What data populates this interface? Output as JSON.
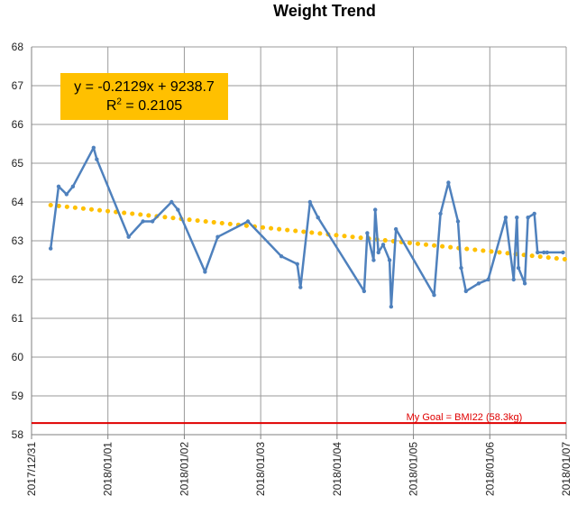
{
  "chart_data": {
    "type": "line",
    "title": "Weight Trend",
    "xlabel": "",
    "ylabel": "",
    "ylim": [
      58,
      68
    ],
    "yticks": [
      58,
      59,
      60,
      61,
      62,
      63,
      64,
      65,
      66,
      67,
      68
    ],
    "xlim": [
      "2017/12/31",
      "2018/01/07"
    ],
    "xticks": [
      "2017/12/31",
      "2018/01/01",
      "2018/01/02",
      "2018/01/03",
      "2018/01/04",
      "2018/01/05",
      "2018/01/06",
      "2018/01/07"
    ],
    "grid": true,
    "series": [
      {
        "color": "#4f81bd",
        "x": [
          "2017/12/31 06:00",
          "2017/12/31 08:30",
          "2017/12/31 11:00",
          "2017/12/31 13:00",
          "2017/12/31 19:30",
          "2017/12/31 20:30",
          "2018/01/01 06:30",
          "2018/01/01 11:00",
          "2018/01/01 14:00",
          "2018/01/01 20:00",
          "2018/01/01 22:00",
          "2018/01/02 06:30",
          "2018/01/02 10:30",
          "2018/01/02 20:00",
          "2018/01/03 06:30",
          "2018/01/03 11:30",
          "2018/01/03 12:30",
          "2018/01/03 15:30",
          "2018/01/03 18:00",
          "2018/01/04 08:30",
          "2018/01/04 09:30",
          "2018/01/04 11:30",
          "2018/01/04 12:00",
          "2018/01/04 13:00",
          "2018/01/04 14:30",
          "2018/01/04 16:30",
          "2018/01/04 17:00",
          "2018/01/04 18:30",
          "2018/01/05 06:30",
          "2018/01/05 08:30",
          "2018/01/05 11:00",
          "2018/01/05 14:00",
          "2018/01/05 15:00",
          "2018/01/05 16:30",
          "2018/01/05 20:30",
          "2018/01/05 23:30",
          "2018/01/06 05:00",
          "2018/01/06 07:30",
          "2018/01/06 08:30",
          "2018/01/06 09:00",
          "2018/01/06 11:00",
          "2018/01/06 12:00",
          "2018/01/06 14:00",
          "2018/01/06 15:00",
          "2018/01/06 17:00",
          "2018/01/06 18:00",
          "2018/01/06 23:00"
        ],
        "values": [
          62.8,
          64.4,
          64.2,
          64.4,
          65.4,
          65.1,
          63.1,
          63.5,
          63.5,
          64.0,
          63.8,
          62.2,
          63.1,
          63.5,
          62.6,
          62.4,
          61.8,
          64.0,
          63.6,
          61.7,
          63.2,
          62.5,
          63.8,
          62.7,
          62.9,
          62.5,
          61.3,
          63.3,
          61.6,
          63.7,
          64.5,
          63.5,
          62.3,
          61.7,
          61.9,
          62.0,
          63.6,
          62.0,
          63.6,
          62.3,
          61.9,
          63.6,
          63.7,
          62.7,
          62.7,
          62.7,
          62.7
        ]
      }
    ],
    "trendline": {
      "type": "linear",
      "color": "#ffc000",
      "style": "dotted",
      "start_value": 63.92,
      "end_value": 62.52,
      "equation_line1": "y = -0.2129x + 9238.7",
      "equation_line2_prefix": "R",
      "equation_line2_sup": "2",
      "equation_line2_suffix": " = 0.2105"
    },
    "goal_line": {
      "value": 58.3,
      "color": "#e00000",
      "label": "My Goal = BMI22 (58.3kg)"
    }
  }
}
